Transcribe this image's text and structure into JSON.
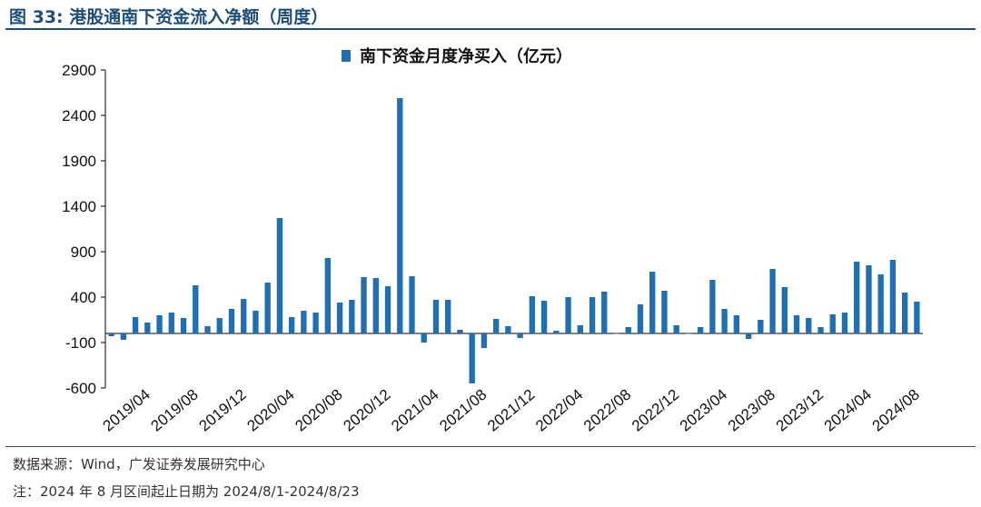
{
  "figure": {
    "title": "图 33: 港股通南下资金流入净额（周度）",
    "source": "数据来源：Wind，广发证券发展研究中心",
    "note": "注：2024 年 8 月区间起止日期为 2024/8/1-2024/8/23"
  },
  "colors": {
    "bar": "#1f6fb2",
    "title": "#1d4e79",
    "axis": "#000000"
  },
  "chart_data": {
    "type": "bar",
    "title": "",
    "legend": [
      {
        "name": "南下资金月度净买入（亿元）",
        "position": "top-center"
      }
    ],
    "xlabel": "",
    "ylabel": "",
    "ylim": [
      -600,
      2900
    ],
    "yticks": [
      -600,
      -100,
      400,
      900,
      1400,
      1900,
      2400,
      2900
    ],
    "grid": false,
    "x_tick_labels": [
      "2019/04",
      "2019/08",
      "2019/12",
      "2020/04",
      "2020/08",
      "2020/12",
      "2021/04",
      "2021/08",
      "2021/12",
      "2022/04",
      "2022/08",
      "2022/12",
      "2023/04",
      "2023/08",
      "2023/12",
      "2024/04",
      "2024/08"
    ],
    "categories": [
      "2019/01",
      "2019/02",
      "2019/03",
      "2019/04",
      "2019/05",
      "2019/06",
      "2019/07",
      "2019/08",
      "2019/09",
      "2019/10",
      "2019/11",
      "2019/12",
      "2020/01",
      "2020/02",
      "2020/03",
      "2020/04",
      "2020/05",
      "2020/06",
      "2020/07",
      "2020/08",
      "2020/09",
      "2020/10",
      "2020/11",
      "2020/12",
      "2021/01",
      "2021/02",
      "2021/03",
      "2021/04",
      "2021/05",
      "2021/06",
      "2021/07",
      "2021/08",
      "2021/09",
      "2021/10",
      "2021/11",
      "2021/12",
      "2022/01",
      "2022/02",
      "2022/03",
      "2022/04",
      "2022/05",
      "2022/06",
      "2022/07",
      "2022/08",
      "2022/09",
      "2022/10",
      "2022/11",
      "2022/12",
      "2023/01",
      "2023/02",
      "2023/03",
      "2023/04",
      "2023/05",
      "2023/06",
      "2023/07",
      "2023/08",
      "2023/09",
      "2023/10",
      "2023/11",
      "2023/12",
      "2024/01",
      "2024/02",
      "2024/03",
      "2024/04",
      "2024/05",
      "2024/06",
      "2024/07",
      "2024/08"
    ],
    "series": [
      {
        "name": "南下资金月度净买入（亿元）",
        "values": [
          -30,
          -70,
          180,
          120,
          200,
          230,
          170,
          530,
          80,
          170,
          270,
          380,
          250,
          560,
          1270,
          180,
          250,
          230,
          830,
          340,
          370,
          620,
          610,
          520,
          2590,
          630,
          -100,
          370,
          370,
          40,
          -550,
          -160,
          160,
          80,
          -50,
          410,
          360,
          30,
          400,
          90,
          400,
          460,
          0,
          70,
          320,
          680,
          470,
          90,
          0,
          70,
          590,
          270,
          200,
          -60,
          150,
          710,
          510,
          200,
          170,
          70,
          210,
          230,
          790,
          750,
          650,
          810,
          450,
          350
        ]
      }
    ]
  }
}
